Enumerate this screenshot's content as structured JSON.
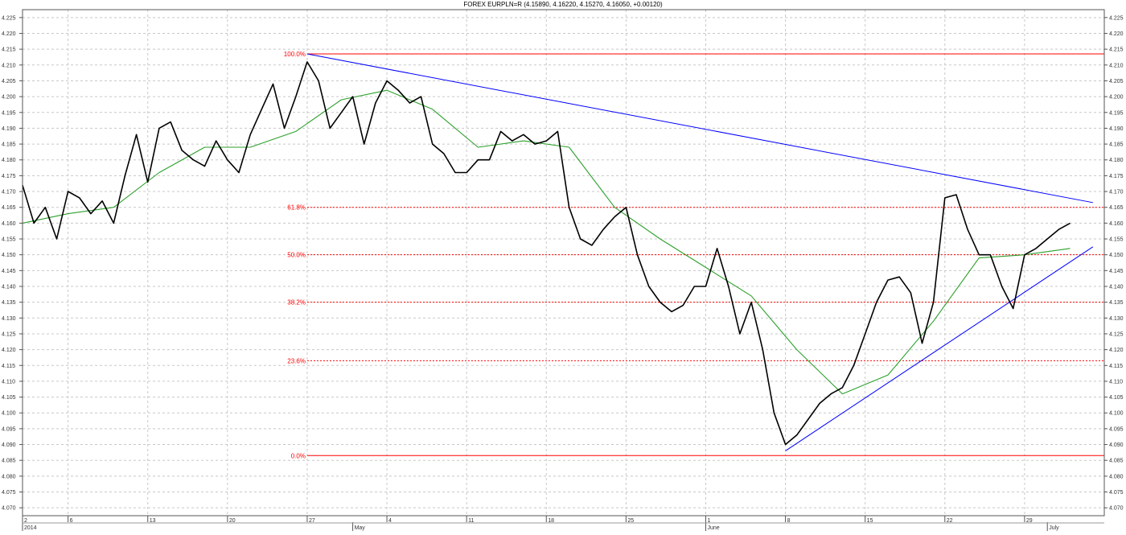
{
  "chart_data": {
    "type": "line",
    "title": "FOREX EURPLN=R (4.15890, 4.16220, 4.15270, 4.16050, +0.00120)",
    "ylim": [
      4.0675,
      4.2275
    ],
    "y_ticks": [
      4.07,
      4.075,
      4.08,
      4.085,
      4.09,
      4.095,
      4.1,
      4.105,
      4.11,
      4.115,
      4.12,
      4.125,
      4.13,
      4.135,
      4.14,
      4.145,
      4.15,
      4.155,
      4.16,
      4.165,
      4.17,
      4.175,
      4.18,
      4.185,
      4.19,
      4.195,
      4.2,
      4.205,
      4.21,
      4.215,
      4.22,
      4.225
    ],
    "y_tick_labels": [
      "4.070",
      "4.075",
      "4.080",
      "4.085",
      "4.090",
      "4.095",
      "4.100",
      "4.105",
      "4.110",
      "4.115",
      "4.120",
      "4.125",
      "4.130",
      "4.135",
      "4.140",
      "4.145",
      "4.150",
      "4.155",
      "4.160",
      "4.165",
      "4.170",
      "4.175",
      "4.180",
      "4.185",
      "4.190",
      "4.195",
      "4.200",
      "4.205",
      "4.210",
      "4.215",
      "4.220",
      "4.225"
    ],
    "x_range": [
      "2014-04-02",
      "2014-07-06"
    ],
    "x_ticks": [
      {
        "date": "2014-04-02",
        "label": "2"
      },
      {
        "date": "2014-04-06",
        "label": "6"
      },
      {
        "date": "2014-04-13",
        "label": "13"
      },
      {
        "date": "2014-04-20",
        "label": "20"
      },
      {
        "date": "2014-04-27",
        "label": "27"
      },
      {
        "date": "2014-05-04",
        "label": "4"
      },
      {
        "date": "2014-05-11",
        "label": "11"
      },
      {
        "date": "2014-05-18",
        "label": "18"
      },
      {
        "date": "2014-05-25",
        "label": "25"
      },
      {
        "date": "2014-06-01",
        "label": "1"
      },
      {
        "date": "2014-06-08",
        "label": "8"
      },
      {
        "date": "2014-06-15",
        "label": "15"
      },
      {
        "date": "2014-06-22",
        "label": "22"
      },
      {
        "date": "2014-06-29",
        "label": "29"
      }
    ],
    "x_bottom_labels": [
      {
        "date": "2014-04-02",
        "label": "2014"
      },
      {
        "date": "2014-05-01",
        "label": "May"
      },
      {
        "date": "2014-06-01",
        "label": "June"
      },
      {
        "date": "2014-07-01",
        "label": "July"
      }
    ],
    "grid": true,
    "series": [
      {
        "color": "#000000",
        "x": [
          "2014-04-02",
          "2014-04-03",
          "2014-04-04",
          "2014-04-05",
          "2014-04-06",
          "2014-04-07",
          "2014-04-08",
          "2014-04-09",
          "2014-04-10",
          "2014-04-11",
          "2014-04-12",
          "2014-04-13",
          "2014-04-14",
          "2014-04-15",
          "2014-04-16",
          "2014-04-17",
          "2014-04-18",
          "2014-04-19",
          "2014-04-20",
          "2014-04-21",
          "2014-04-22",
          "2014-04-23",
          "2014-04-24",
          "2014-04-25",
          "2014-04-26",
          "2014-04-27",
          "2014-04-28",
          "2014-04-29",
          "2014-04-30",
          "2014-05-01",
          "2014-05-02",
          "2014-05-03",
          "2014-05-04",
          "2014-05-05",
          "2014-05-06",
          "2014-05-07",
          "2014-05-08",
          "2014-05-09",
          "2014-05-10",
          "2014-05-11",
          "2014-05-12",
          "2014-05-13",
          "2014-05-14",
          "2014-05-15",
          "2014-05-16",
          "2014-05-17",
          "2014-05-18",
          "2014-05-19",
          "2014-05-20",
          "2014-05-21",
          "2014-05-22",
          "2014-05-23",
          "2014-05-24",
          "2014-05-25",
          "2014-05-26",
          "2014-05-27",
          "2014-05-28",
          "2014-05-29",
          "2014-05-30",
          "2014-05-31",
          "2014-06-01",
          "2014-06-02",
          "2014-06-03",
          "2014-06-04",
          "2014-06-05",
          "2014-06-06",
          "2014-06-07",
          "2014-06-08",
          "2014-06-09",
          "2014-06-10",
          "2014-06-11",
          "2014-06-12",
          "2014-06-13",
          "2014-06-14",
          "2014-06-15",
          "2014-06-16",
          "2014-06-17",
          "2014-06-18",
          "2014-06-19",
          "2014-06-20",
          "2014-06-21",
          "2014-06-22",
          "2014-06-23",
          "2014-06-24",
          "2014-06-25",
          "2014-06-26",
          "2014-06-27",
          "2014-06-28",
          "2014-06-29",
          "2014-06-30",
          "2014-07-01",
          "2014-07-02",
          "2014-07-03"
        ],
        "y": [
          4.172,
          4.16,
          4.165,
          4.155,
          4.17,
          4.168,
          4.163,
          4.167,
          4.16,
          4.175,
          4.188,
          4.173,
          4.19,
          4.192,
          4.183,
          4.18,
          4.178,
          4.186,
          4.18,
          4.176,
          4.188,
          4.196,
          4.204,
          4.19,
          4.2,
          4.211,
          4.205,
          4.19,
          4.195,
          4.2,
          4.185,
          4.198,
          4.205,
          4.202,
          4.198,
          4.2,
          4.185,
          4.182,
          4.176,
          4.176,
          4.18,
          4.18,
          4.189,
          4.186,
          4.188,
          4.185,
          4.186,
          4.189,
          4.165,
          4.155,
          4.153,
          4.158,
          4.162,
          4.165,
          4.15,
          4.14,
          4.135,
          4.132,
          4.134,
          4.14,
          4.14,
          4.152,
          4.14,
          4.125,
          4.135,
          4.12,
          4.1,
          4.09,
          4.093,
          4.098,
          4.103,
          4.106,
          4.108,
          4.115,
          4.125,
          4.135,
          4.142,
          4.143,
          4.138,
          4.122,
          4.135,
          4.168,
          4.169,
          4.158,
          4.15,
          4.15,
          4.14,
          4.133,
          4.15,
          4.152,
          4.155,
          4.158,
          4.16
        ]
      },
      {
        "color": "#2ca02c",
        "x": [
          "2014-04-02",
          "2014-04-06",
          "2014-04-10",
          "2014-04-14",
          "2014-04-18",
          "2014-04-22",
          "2014-04-26",
          "2014-04-30",
          "2014-05-04",
          "2014-05-08",
          "2014-05-12",
          "2014-05-16",
          "2014-05-20",
          "2014-05-24",
          "2014-05-28",
          "2014-06-01",
          "2014-06-05",
          "2014-06-09",
          "2014-06-13",
          "2014-06-17",
          "2014-06-21",
          "2014-06-25",
          "2014-06-29",
          "2014-07-03"
        ],
        "y": [
          4.16,
          4.163,
          4.165,
          4.176,
          4.184,
          4.184,
          4.189,
          4.199,
          4.202,
          4.196,
          4.184,
          4.186,
          4.184,
          4.165,
          4.155,
          4.146,
          4.137,
          4.12,
          4.106,
          4.112,
          4.129,
          4.149,
          4.15,
          4.152
        ]
      }
    ],
    "annotations": [
      {
        "type": "horizontal",
        "label": "100.0%",
        "y": 4.2135,
        "color": "#ff0000",
        "style": "solid"
      },
      {
        "type": "horizontal",
        "label": "61.8%",
        "y": 4.165,
        "color": "#ff0000",
        "style": "dashed"
      },
      {
        "type": "horizontal",
        "label": "50.0%",
        "y": 4.15,
        "color": "#ff0000",
        "style": "dashed"
      },
      {
        "type": "horizontal",
        "label": "38.2%",
        "y": 4.135,
        "color": "#ff0000",
        "style": "dashed"
      },
      {
        "type": "horizontal",
        "label": "23.6%",
        "y": 4.1165,
        "color": "#ff0000",
        "style": "dashed"
      },
      {
        "type": "horizontal",
        "label": "0.0%",
        "y": 4.0865,
        "color": "#ff0000",
        "style": "solid"
      }
    ],
    "trendlines": [
      {
        "color": "#0000ff",
        "from": {
          "x": "2014-04-27",
          "y": 4.2135
        },
        "to": {
          "x": "2014-07-05",
          "y": 4.1665
        }
      },
      {
        "color": "#0000ff",
        "from": {
          "x": "2014-06-08",
          "y": 4.088
        },
        "to": {
          "x": "2014-07-05",
          "y": 4.1525
        }
      }
    ]
  }
}
